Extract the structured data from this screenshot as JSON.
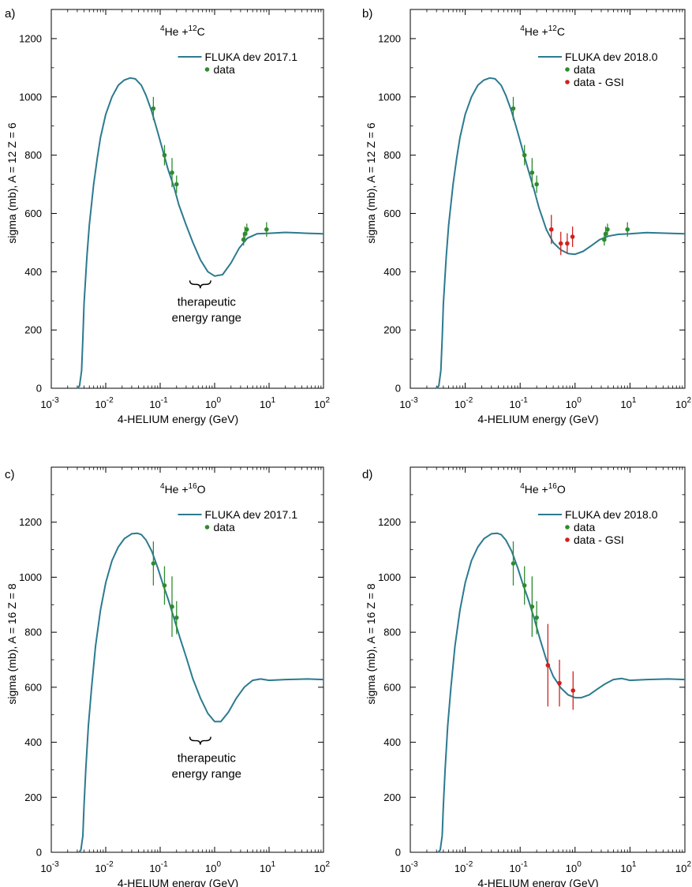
{
  "colors": {
    "model": "#2b7a8f",
    "data": "#2e8b2e",
    "gsi": "#d0211c",
    "axis": "#000000"
  },
  "chart_data": [
    {
      "panel_label": "a)",
      "type": "line",
      "title_base": "4",
      "title_he": "He +",
      "title_sup": "12",
      "title_el": "C",
      "xlabel": "4-HELIUM energy (GeV)",
      "ylabel": "sigma (mb),  A =  12 Z  =  6",
      "xscale": "log",
      "xlim": [
        0.001,
        100
      ],
      "ylim": [
        0,
        1300
      ],
      "xticks": [
        "-3",
        "-2",
        "-1",
        "0",
        "1",
        "2"
      ],
      "yticks": [
        0,
        200,
        400,
        600,
        800,
        1000,
        1200
      ],
      "legend": {
        "model": "FLUKA dev 2017.1",
        "data": "data"
      },
      "model": {
        "x": [
          0.003,
          0.0033,
          0.0036,
          0.0038,
          0.004,
          0.0045,
          0.005,
          0.006,
          0.007,
          0.008,
          0.01,
          0.013,
          0.017,
          0.022,
          0.028,
          0.035,
          0.045,
          0.055,
          0.07,
          0.09,
          0.11,
          0.14,
          0.18,
          0.22,
          0.3,
          0.4,
          0.55,
          0.75,
          1.0,
          1.4,
          2.0,
          2.8,
          4.0,
          6.0,
          10,
          20,
          50,
          100
        ],
        "y": [
          0,
          8,
          60,
          170,
          290,
          450,
          560,
          700,
          790,
          860,
          940,
          1000,
          1040,
          1058,
          1065,
          1062,
          1040,
          1005,
          950,
          880,
          820,
          750,
          690,
          630,
          560,
          500,
          440,
          400,
          385,
          390,
          430,
          480,
          515,
          530,
          532,
          535,
          532,
          530
        ]
      },
      "data": [
        {
          "x": 0.075,
          "y": 960,
          "yerr": 40
        },
        {
          "x": 0.12,
          "y": 800,
          "yerr": 35
        },
        {
          "x": 0.165,
          "y": 740,
          "yerr": 50
        },
        {
          "x": 0.2,
          "y": 700,
          "yerr": 30
        },
        {
          "x": 3.4,
          "y": 510,
          "yerr": 20
        },
        {
          "x": 3.6,
          "y": 530,
          "yerr": 25
        },
        {
          "x": 3.9,
          "y": 545,
          "yerr": 20
        },
        {
          "x": 9.0,
          "y": 545,
          "yerr": 25
        }
      ],
      "gsi": [],
      "annotation": {
        "text1": "therapeutic",
        "text2": "energy range",
        "brace_x": [
          0.35,
          0.85
        ],
        "brace_y": 370
      }
    },
    {
      "panel_label": "b)",
      "type": "line",
      "title_base": "4",
      "title_he": "He +",
      "title_sup": "12",
      "title_el": "C",
      "xlabel": "4-HELIUM energy (GeV)",
      "ylabel": "sigma (mb),  A =  12 Z  =  6",
      "xscale": "log",
      "xlim": [
        0.001,
        100
      ],
      "ylim": [
        0,
        1300
      ],
      "xticks": [
        "-3",
        "-2",
        "-1",
        "0",
        "1",
        "2"
      ],
      "yticks": [
        0,
        200,
        400,
        600,
        800,
        1000,
        1200
      ],
      "legend": {
        "model": "FLUKA dev 2018.0",
        "data": "data",
        "gsi": "data - GSI"
      },
      "model": {
        "x": [
          0.003,
          0.0033,
          0.0036,
          0.0038,
          0.004,
          0.0045,
          0.005,
          0.006,
          0.007,
          0.008,
          0.01,
          0.013,
          0.017,
          0.022,
          0.028,
          0.035,
          0.045,
          0.055,
          0.07,
          0.09,
          0.11,
          0.14,
          0.18,
          0.22,
          0.3,
          0.4,
          0.55,
          0.75,
          1.0,
          1.4,
          2.0,
          2.8,
          4.0,
          6.0,
          10,
          20,
          50,
          100
        ],
        "y": [
          0,
          8,
          60,
          170,
          290,
          450,
          560,
          700,
          790,
          860,
          940,
          1000,
          1040,
          1058,
          1065,
          1062,
          1040,
          1005,
          950,
          880,
          820,
          750,
          680,
          620,
          545,
          500,
          475,
          462,
          460,
          470,
          490,
          510,
          522,
          528,
          530,
          534,
          532,
          530
        ]
      },
      "data": [
        {
          "x": 0.075,
          "y": 960,
          "yerr": 40
        },
        {
          "x": 0.12,
          "y": 800,
          "yerr": 35
        },
        {
          "x": 0.165,
          "y": 740,
          "yerr": 50
        },
        {
          "x": 0.2,
          "y": 700,
          "yerr": 30
        },
        {
          "x": 3.4,
          "y": 510,
          "yerr": 20
        },
        {
          "x": 3.6,
          "y": 530,
          "yerr": 25
        },
        {
          "x": 3.9,
          "y": 545,
          "yerr": 20
        },
        {
          "x": 9.0,
          "y": 545,
          "yerr": 25
        }
      ],
      "gsi": [
        {
          "x": 0.37,
          "y": 545,
          "yerr": 50
        },
        {
          "x": 0.55,
          "y": 497,
          "yerr": 40
        },
        {
          "x": 0.72,
          "y": 497,
          "yerr": 35
        },
        {
          "x": 0.9,
          "y": 520,
          "yerr": 35
        }
      ]
    },
    {
      "panel_label": "c)",
      "type": "line",
      "title_base": "4",
      "title_he": "He +",
      "title_sup": "16",
      "title_el": "O",
      "xlabel": "4-HELIUM energy (GeV)",
      "ylabel": "sigma (mb),  A =  16 Z  =  8",
      "xscale": "log",
      "xlim": [
        0.001,
        100
      ],
      "ylim": [
        0,
        1400
      ],
      "xticks": [
        "-3",
        "-2",
        "-1",
        "0",
        "1",
        "2"
      ],
      "yticks": [
        0,
        200,
        400,
        600,
        800,
        1000,
        1200
      ],
      "legend": {
        "model": "FLUKA dev 2017.1",
        "data": "data"
      },
      "model": {
        "x": [
          0.0032,
          0.0035,
          0.0038,
          0.004,
          0.0043,
          0.0048,
          0.0055,
          0.0065,
          0.008,
          0.01,
          0.013,
          0.017,
          0.022,
          0.03,
          0.038,
          0.045,
          0.055,
          0.07,
          0.09,
          0.11,
          0.14,
          0.18,
          0.23,
          0.3,
          0.4,
          0.55,
          0.75,
          1.0,
          1.3,
          1.8,
          2.5,
          3.5,
          5.0,
          7.0,
          10,
          20,
          50,
          100
        ],
        "y": [
          0,
          8,
          60,
          170,
          300,
          460,
          600,
          750,
          880,
          980,
          1060,
          1110,
          1140,
          1158,
          1160,
          1155,
          1135,
          1095,
          1035,
          980,
          920,
          850,
          780,
          710,
          630,
          560,
          505,
          475,
          475,
          510,
          560,
          600,
          625,
          630,
          625,
          628,
          630,
          628
        ]
      },
      "data": [
        {
          "x": 0.075,
          "y": 1050,
          "yerr": 80
        },
        {
          "x": 0.12,
          "y": 970,
          "yerr": 70
        },
        {
          "x": 0.165,
          "y": 893,
          "yerr": 110
        },
        {
          "x": 0.2,
          "y": 853,
          "yerr": 60
        }
      ],
      "gsi": [],
      "annotation": {
        "text1": "therapeutic",
        "text2": "energy range",
        "brace_x": [
          0.35,
          0.85
        ],
        "brace_y": 420
      }
    },
    {
      "panel_label": "d)",
      "type": "line",
      "title_base": "4",
      "title_he": "He +",
      "title_sup": "16",
      "title_el": "O",
      "xlabel": "4-HELIUM energy (GeV)",
      "ylabel": "sigma (mb),  A =  16 Z  =  8",
      "xscale": "log",
      "xlim": [
        0.001,
        100
      ],
      "ylim": [
        0,
        1400
      ],
      "xticks": [
        "-3",
        "-2",
        "-1",
        "0",
        "1",
        "2"
      ],
      "yticks": [
        0,
        200,
        400,
        600,
        800,
        1000,
        1200
      ],
      "legend": {
        "model": "FLUKA dev 2018.0",
        "data": "data",
        "gsi": "data - GSI"
      },
      "model": {
        "x": [
          0.0032,
          0.0035,
          0.0038,
          0.004,
          0.0043,
          0.0048,
          0.0055,
          0.0065,
          0.008,
          0.01,
          0.013,
          0.017,
          0.022,
          0.03,
          0.038,
          0.045,
          0.055,
          0.07,
          0.09,
          0.11,
          0.14,
          0.18,
          0.23,
          0.3,
          0.4,
          0.55,
          0.75,
          1.0,
          1.3,
          1.8,
          2.5,
          3.5,
          5.0,
          7.0,
          10,
          20,
          50,
          100
        ],
        "y": [
          0,
          8,
          60,
          170,
          300,
          460,
          600,
          750,
          880,
          980,
          1060,
          1110,
          1140,
          1158,
          1160,
          1155,
          1135,
          1095,
          1035,
          980,
          920,
          850,
          775,
          700,
          640,
          598,
          572,
          562,
          562,
          572,
          592,
          612,
          628,
          632,
          625,
          628,
          630,
          628
        ]
      },
      "data": [
        {
          "x": 0.075,
          "y": 1050,
          "yerr": 80
        },
        {
          "x": 0.12,
          "y": 970,
          "yerr": 70
        },
        {
          "x": 0.165,
          "y": 893,
          "yerr": 110
        },
        {
          "x": 0.2,
          "y": 853,
          "yerr": 60
        }
      ],
      "gsi": [
        {
          "x": 0.32,
          "y": 680,
          "yerr": 150
        },
        {
          "x": 0.52,
          "y": 615,
          "yerr": 85
        },
        {
          "x": 0.92,
          "y": 588,
          "yerr": 70
        }
      ]
    }
  ]
}
